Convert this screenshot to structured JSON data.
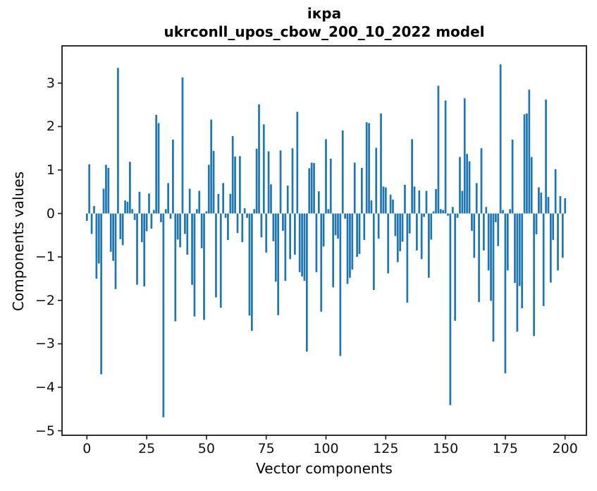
{
  "title": {
    "line1": "ікра",
    "line2": "ukrconll_upos_cbow_200_10_2022 model"
  },
  "chart_data": {
    "type": "bar",
    "title": "ікра",
    "subtitle": "ukrconll_upos_cbow_200_10_2022 model",
    "xlabel": "Vector components",
    "ylabel": "Components values",
    "x_tick_values": [
      0,
      25,
      50,
      75,
      100,
      125,
      150,
      175,
      200
    ],
    "x_tick_labels": [
      "0",
      "25",
      "50",
      "75",
      "100",
      "125",
      "150",
      "175",
      "200"
    ],
    "y_tick_values": [
      3,
      2,
      1,
      0,
      -1,
      -2,
      -3,
      -4,
      -5
    ],
    "y_tick_labels": [
      "3",
      "2",
      "1",
      "0",
      "−1",
      "−2",
      "−3",
      "−4",
      "−5"
    ],
    "xlim": [
      -10.4,
      210.4
    ],
    "ylim": [
      -5.1,
      3.85
    ],
    "grid": false,
    "legend": null,
    "bar_color": "#1f77b4",
    "x_start_index": 0,
    "values": [
      -0.17,
      1.13,
      -0.47,
      0.17,
      -1.5,
      -1.15,
      -3.7,
      0.57,
      1.12,
      1.05,
      -0.88,
      -1.09,
      -1.74,
      3.35,
      -0.59,
      -0.73,
      0.3,
      0.27,
      1.19,
      0.1,
      -0.15,
      -1.64,
      0.5,
      -0.66,
      -1.68,
      -0.41,
      0.46,
      -0.35,
      0.08,
      2.27,
      2.08,
      -0.2,
      -4.69,
      0.1,
      0.7,
      -0.12,
      1.7,
      -2.48,
      -0.6,
      -0.78,
      3.13,
      -0.47,
      -0.95,
      0.57,
      -1.64,
      -2.37,
      0.1,
      0.52,
      -0.8,
      -2.45,
      0.05,
      1.12,
      2.16,
      1.44,
      -1.93,
      0.45,
      -2.17,
      0.7,
      -0.1,
      -0.61,
      0.45,
      1.78,
      1.31,
      -0.45,
      1.32,
      -0.66,
      0.12,
      -0.1,
      -2.35,
      -2.7,
      0.1,
      1.49,
      2.51,
      -0.55,
      2.05,
      -0.9,
      1.43,
      0.67,
      -0.64,
      -1.57,
      -2.34,
      1.45,
      -0.4,
      -1.55,
      0.64,
      -1.05,
      1.5,
      -0.95,
      2.34,
      -1.35,
      -1.45,
      -1.55,
      -3.18,
      1.04,
      1.17,
      1.16,
      -1.35,
      0.51,
      -2.26,
      -0.76,
      1.71,
      0.1,
      1.26,
      -1.7,
      -0.5,
      -0.58,
      -3.28,
      1.91,
      -0.12,
      -1.62,
      -1.48,
      -1.29,
      1.17,
      -1.0,
      -0.93,
      1.05,
      -0.61,
      2.1,
      2.08,
      0.3,
      -1.76,
      1.51,
      -0.58,
      2.3,
      0.62,
      0.6,
      -1.38,
      0.43,
      0.32,
      -0.52,
      -1.12,
      -0.87,
      -0.65,
      0.66,
      -2.05,
      -0.46,
      1.71,
      0.62,
      -0.85,
      0.53,
      -1.05,
      -0.08,
      0.52,
      -1.48,
      -0.6,
      0.05,
      0.56,
      2.94,
      0.1,
      0.08,
      2.6,
      -0.05,
      -4.41,
      0.15,
      -2.47,
      -0.1,
      1.3,
      0.52,
      2.65,
      1.37,
      1.2,
      -0.4,
      -1.02,
      0.7,
      -2.04,
      1.5,
      -0.85,
      0.15,
      -1.31,
      -2.01,
      -2.95,
      -0.2,
      -0.75,
      3.43,
      0.08,
      -3.68,
      -1.31,
      0.1,
      1.7,
      -1.6,
      -2.72,
      -1.67,
      -2.18,
      2.28,
      2.3,
      2.85,
      1.3,
      -2.82,
      -0.48,
      0.6,
      0.48,
      -2.13,
      2.62,
      0.38,
      -1.59,
      -0.61,
      1.02,
      -1.31,
      0.4,
      -1.02,
      0.35
    ]
  }
}
